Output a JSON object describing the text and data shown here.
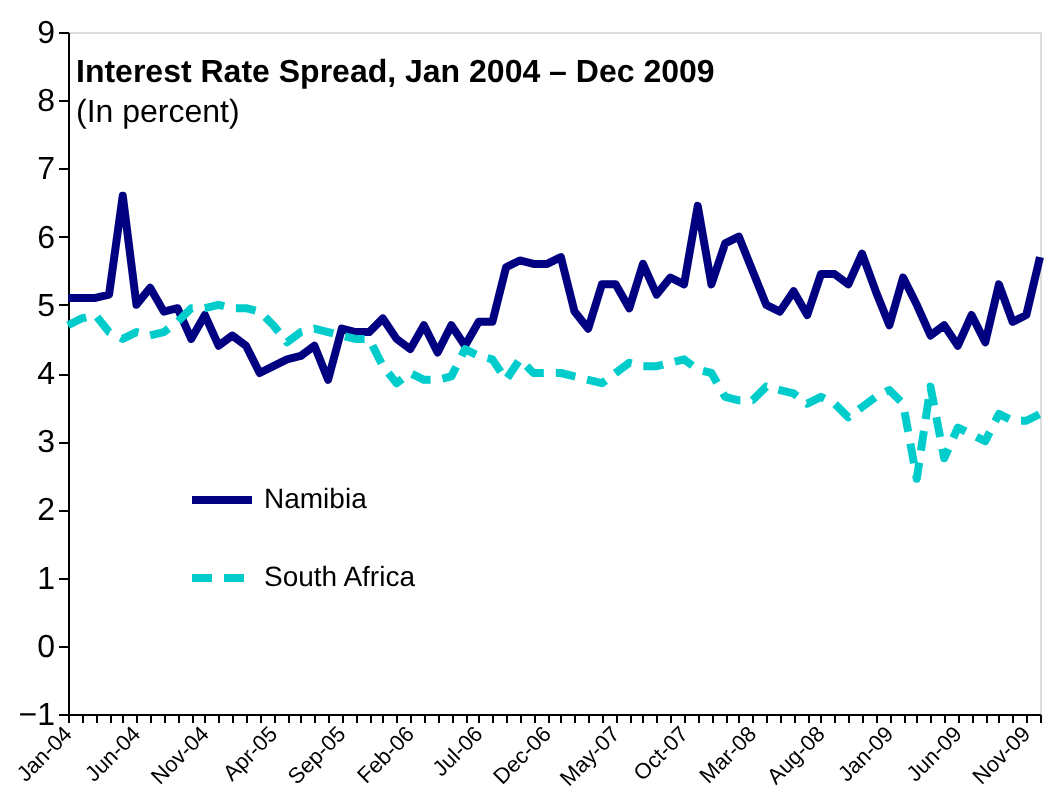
{
  "chart_data": {
    "type": "line",
    "title": "Interest Rate Spread, Jan 2004 – Dec 2009",
    "subtitle": "(In percent)",
    "categories": [
      "Jan-04",
      null,
      null,
      null,
      null,
      "Jun-04",
      null,
      null,
      null,
      null,
      "Nov-04",
      null,
      null,
      null,
      null,
      "Apr-05",
      null,
      null,
      null,
      null,
      "Sep-05",
      null,
      null,
      null,
      null,
      "Feb-06",
      null,
      null,
      null,
      null,
      "Jul-06",
      null,
      null,
      null,
      null,
      "Dec-06",
      null,
      null,
      null,
      null,
      "May-07",
      null,
      null,
      null,
      null,
      "Oct-07",
      null,
      null,
      null,
      null,
      "Mar-08",
      null,
      null,
      null,
      null,
      "Aug-08",
      null,
      null,
      null,
      null,
      "Jan-09",
      null,
      null,
      null,
      null,
      "Jun-09",
      null,
      null,
      null,
      null,
      "Nov-09",
      null
    ],
    "series": [
      {
        "name": "Namibia",
        "color": "#000080",
        "line_style": "solid",
        "values": [
          5.1,
          5.1,
          5.1,
          5.15,
          6.6,
          5.0,
          5.25,
          4.9,
          4.95,
          4.5,
          4.85,
          4.4,
          4.55,
          4.4,
          4.0,
          4.1,
          4.2,
          4.25,
          4.4,
          3.9,
          4.65,
          4.6,
          4.6,
          4.8,
          4.5,
          4.35,
          4.7,
          4.3,
          4.7,
          4.4,
          4.75,
          4.75,
          5.55,
          5.65,
          5.6,
          5.6,
          5.7,
          4.9,
          4.65,
          5.3,
          5.3,
          4.95,
          5.6,
          5.15,
          5.4,
          5.3,
          6.45,
          5.3,
          5.9,
          6.0,
          5.5,
          5.0,
          4.9,
          5.2,
          4.85,
          5.45,
          5.45,
          5.3,
          5.75,
          5.2,
          4.7,
          5.4,
          5.0,
          4.55,
          4.7,
          4.4,
          4.85,
          4.45,
          5.3,
          4.75,
          4.85,
          5.7
        ]
      },
      {
        "name": "South Africa",
        "color": "#00cccc",
        "line_style": "dashed",
        "values": [
          4.7,
          4.8,
          4.85,
          4.6,
          4.5,
          4.6,
          4.55,
          4.6,
          4.75,
          4.95,
          4.95,
          5.0,
          4.95,
          4.95,
          4.9,
          4.7,
          4.45,
          4.6,
          4.65,
          4.6,
          4.55,
          4.5,
          4.5,
          4.1,
          3.85,
          4.0,
          3.9,
          3.9,
          3.95,
          4.35,
          4.25,
          4.2,
          3.9,
          4.2,
          4.0,
          4.0,
          4.0,
          3.95,
          3.9,
          3.85,
          4.0,
          4.15,
          4.1,
          4.1,
          4.15,
          4.2,
          4.05,
          4.0,
          3.65,
          3.6,
          3.6,
          3.8,
          3.75,
          3.7,
          3.55,
          3.65,
          3.55,
          3.35,
          3.5,
          3.65,
          3.75,
          3.55,
          2.45,
          3.8,
          2.75,
          3.2,
          3.1,
          3.0,
          3.4,
          3.3,
          3.3,
          3.4
        ]
      }
    ],
    "ylim": [
      -1,
      9
    ],
    "yticks": [
      -1,
      0,
      1,
      2,
      3,
      4,
      5,
      6,
      7,
      8,
      9
    ],
    "grid": false,
    "legend": "bottom left"
  }
}
